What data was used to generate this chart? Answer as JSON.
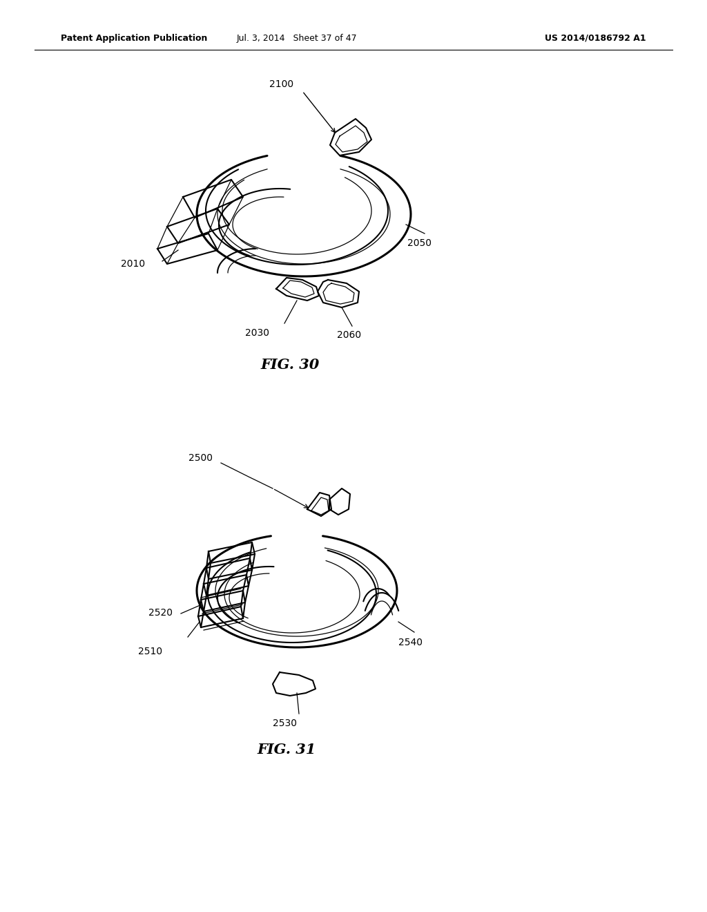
{
  "bg_color": "#ffffff",
  "line_color": "#000000",
  "header_left": "Patent Application Publication",
  "header_center": "Jul. 3, 2014   Sheet 37 of 47",
  "header_right": "US 2014/0186792 A1",
  "fig_label_1": "FIG. 30",
  "fig_label_2": "FIG. 31",
  "font_size_header": 9,
  "font_size_label": 10,
  "font_size_fig": 15,
  "lw_thin": 0.9,
  "lw_med": 1.5,
  "lw_thick": 2.2
}
